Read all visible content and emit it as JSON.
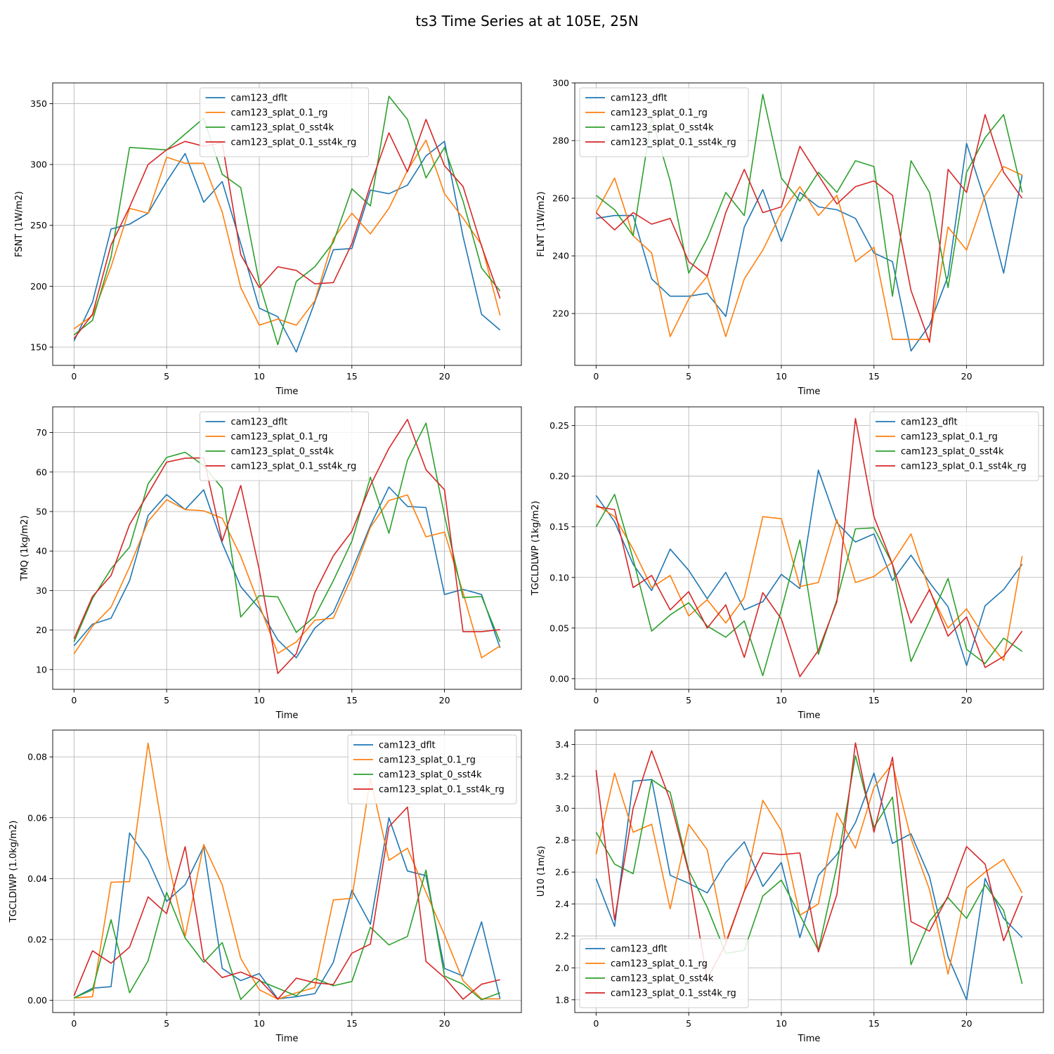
{
  "figure": {
    "title": "ts3 Time Series at at 105E, 25N"
  },
  "colors": {
    "cam123_dflt": "#1f77b4",
    "cam123_splat_0.1_rg": "#ff7f0e",
    "cam123_splat_0_sst4k": "#2ca02c",
    "cam123_splat_0.1_sst4k_rg": "#d62728"
  },
  "chart_data": [
    {
      "type": "line",
      "xlabel": "Time",
      "ylabel": "FSNT (1W/m2)",
      "xlim": [
        -1.15,
        24.15
      ],
      "ylim": [
        135,
        367
      ],
      "xticks": [
        0,
        5,
        10,
        15,
        20
      ],
      "yticks": [
        150,
        200,
        250,
        300,
        350
      ],
      "grid": true,
      "legend": "upper-center",
      "x": [
        0,
        1,
        2,
        3,
        4,
        5,
        6,
        7,
        8,
        9,
        10,
        11,
        12,
        13,
        14,
        15,
        16,
        17,
        18,
        19,
        20,
        21,
        22,
        23
      ],
      "series": [
        {
          "name": "cam123_dflt",
          "color": "#1f77b4",
          "values": [
            155,
            187,
            247,
            251,
            260,
            286,
            309,
            269,
            286,
            235,
            182,
            175,
            146,
            187,
            230,
            231,
            279,
            276,
            283,
            307,
            319,
            241,
            177,
            164
          ]
        },
        {
          "name": "cam123_splat_0.1_rg",
          "color": "#ff7f0e",
          "values": [
            165,
            176,
            216,
            264,
            260,
            306,
            301,
            301,
            261,
            199,
            168,
            173,
            168,
            188,
            239,
            260,
            243,
            264,
            295,
            320,
            276,
            256,
            234,
            176
          ]
        },
        {
          "name": "cam123_splat_0_sst4k",
          "color": "#2ca02c",
          "values": [
            160,
            172,
            224,
            314,
            313,
            312,
            325,
            338,
            292,
            281,
            203,
            152,
            204,
            216,
            236,
            280,
            266,
            356,
            337,
            289,
            314,
            270,
            215,
            196
          ]
        },
        {
          "name": "cam123_splat_0.1_sst4k_rg",
          "color": "#d62728",
          "values": [
            157,
            177,
            234,
            265,
            300,
            312,
            319,
            315,
            318,
            226,
            199,
            216,
            213,
            202,
            203,
            235,
            283,
            326,
            294,
            337,
            299,
            282,
            233,
            190
          ]
        }
      ]
    },
    {
      "type": "line",
      "xlabel": "Time",
      "ylabel": "FLNT (1W/m2)",
      "xlim": [
        -1.15,
        24.15
      ],
      "ylim": [
        202,
        300
      ],
      "xticks": [
        0,
        5,
        10,
        15,
        20
      ],
      "yticks": [
        220,
        240,
        260,
        280,
        300
      ],
      "grid": true,
      "legend": "upper-left",
      "x": [
        0,
        1,
        2,
        3,
        4,
        5,
        6,
        7,
        8,
        9,
        10,
        11,
        12,
        13,
        14,
        15,
        16,
        17,
        18,
        19,
        20,
        21,
        22,
        23
      ],
      "series": [
        {
          "name": "cam123_dflt",
          "color": "#1f77b4",
          "values": [
            253,
            254,
            254,
            232,
            226,
            226,
            227,
            219,
            250,
            263,
            245,
            262,
            257,
            256,
            253,
            241,
            238,
            207,
            216,
            233,
            279,
            259,
            234,
            268
          ]
        },
        {
          "name": "cam123_splat_0.1_rg",
          "color": "#ff7f0e",
          "values": [
            255,
            267,
            247,
            241,
            212,
            225,
            233,
            212,
            232,
            242,
            255,
            264,
            254,
            261,
            238,
            243,
            211,
            211,
            211,
            250,
            242,
            261,
            271,
            268
          ]
        },
        {
          "name": "cam123_splat_0_sst4k",
          "color": "#2ca02c",
          "values": [
            261,
            256,
            247,
            288,
            266,
            234,
            246,
            262,
            254,
            296,
            267,
            259,
            269,
            262,
            273,
            271,
            226,
            273,
            262,
            229,
            269,
            281,
            289,
            262
          ]
        },
        {
          "name": "cam123_splat_0.1_sst4k_rg",
          "color": "#d62728",
          "values": [
            255,
            249,
            255,
            251,
            253,
            238,
            233,
            255,
            270,
            255,
            257,
            278,
            268,
            258,
            264,
            266,
            261,
            228,
            210,
            270,
            262,
            289,
            269,
            260
          ]
        }
      ]
    },
    {
      "type": "line",
      "xlabel": "Time",
      "ylabel": "TMQ (1kg/m2)",
      "xlim": [
        -1.15,
        24.15
      ],
      "ylim": [
        5,
        76.5
      ],
      "xticks": [
        0,
        5,
        10,
        15,
        20
      ],
      "yticks": [
        10,
        20,
        30,
        40,
        50,
        60,
        70
      ],
      "grid": true,
      "legend": "upper-center",
      "x": [
        0,
        1,
        2,
        3,
        4,
        5,
        6,
        7,
        8,
        9,
        10,
        11,
        12,
        13,
        14,
        15,
        16,
        17,
        18,
        19,
        20,
        21,
        22,
        23
      ],
      "series": [
        {
          "name": "cam123_dflt",
          "color": "#1f77b4",
          "values": [
            16,
            21.5,
            23,
            32.5,
            49,
            54.3,
            50.5,
            55.5,
            42,
            31,
            25.5,
            17.5,
            13,
            20.5,
            24.5,
            35,
            46.5,
            56.2,
            51.3,
            51,
            29,
            30.3,
            29,
            15.5
          ]
        },
        {
          "name": "cam123_splat_0.1_rg",
          "color": "#ff7f0e",
          "values": [
            14,
            21,
            25.8,
            36,
            47.5,
            53,
            50.5,
            50.2,
            48.3,
            38.7,
            26.4,
            14.1,
            17,
            22.5,
            23,
            33.5,
            46,
            52.8,
            54.2,
            43.6,
            44.8,
            29.5,
            13,
            16
          ]
        },
        {
          "name": "cam123_splat_0_sst4k",
          "color": "#2ca02c",
          "values": [
            17,
            28,
            35.5,
            41,
            57,
            63.7,
            65,
            61.6,
            55.9,
            23.3,
            28.7,
            28.4,
            19.4,
            23.5,
            32.5,
            42.5,
            58.7,
            44.5,
            63,
            72.4,
            49,
            28.2,
            28.5,
            17
          ]
        },
        {
          "name": "cam123_splat_0.1_sst4k_rg",
          "color": "#d62728",
          "values": [
            17.8,
            28.5,
            33.8,
            46.7,
            54.5,
            62.5,
            63.5,
            63.6,
            42.5,
            56.6,
            35.3,
            9,
            14,
            29.5,
            38.8,
            45,
            56.6,
            66,
            73.3,
            60.6,
            55.5,
            19.6,
            19.6,
            20.1
          ]
        }
      ]
    },
    {
      "type": "line",
      "xlabel": "Time",
      "ylabel": "TGCLDLWP (1kg/m2)",
      "xlim": [
        -1.15,
        24.15
      ],
      "ylim": [
        -0.0105,
        0.2685
      ],
      "xticks": [
        0,
        5,
        10,
        15,
        20
      ],
      "yticks": [
        0.0,
        0.05,
        0.1,
        0.15,
        0.2,
        0.25
      ],
      "ytick_labels": [
        "0.00",
        "0.05",
        "0.10",
        "0.15",
        "0.20",
        "0.25"
      ],
      "grid": true,
      "legend": "upper-right",
      "x": [
        0,
        1,
        2,
        3,
        4,
        5,
        6,
        7,
        8,
        9,
        10,
        11,
        12,
        13,
        14,
        15,
        16,
        17,
        18,
        19,
        20,
        21,
        22,
        23
      ],
      "series": [
        {
          "name": "cam123_dflt",
          "color": "#1f77b4",
          "values": [
            0.181,
            0.155,
            0.113,
            0.087,
            0.128,
            0.107,
            0.079,
            0.105,
            0.068,
            0.076,
            0.103,
            0.089,
            0.206,
            0.154,
            0.135,
            0.143,
            0.097,
            0.122,
            0.095,
            0.071,
            0.013,
            0.072,
            0.088,
            0.113
          ]
        },
        {
          "name": "cam123_splat_0.1_rg",
          "color": "#ff7f0e",
          "values": [
            0.172,
            0.16,
            0.128,
            0.09,
            0.102,
            0.062,
            0.078,
            0.055,
            0.08,
            0.16,
            0.158,
            0.091,
            0.095,
            0.157,
            0.095,
            0.101,
            0.115,
            0.143,
            0.087,
            0.05,
            0.069,
            0.04,
            0.018,
            0.121
          ]
        },
        {
          "name": "cam123_splat_0_sst4k",
          "color": "#2ca02c",
          "values": [
            0.15,
            0.182,
            0.118,
            0.047,
            0.063,
            0.075,
            0.052,
            0.041,
            0.057,
            0.003,
            0.068,
            0.137,
            0.024,
            0.078,
            0.148,
            0.149,
            0.113,
            0.017,
            0.057,
            0.099,
            0.029,
            0.015,
            0.04,
            0.027
          ]
        },
        {
          "name": "cam123_splat_0.1_sst4k_rg",
          "color": "#d62728",
          "values": [
            0.17,
            0.167,
            0.09,
            0.102,
            0.068,
            0.086,
            0.05,
            0.073,
            0.021,
            0.085,
            0.059,
            0.002,
            0.028,
            0.076,
            0.257,
            0.16,
            0.113,
            0.055,
            0.088,
            0.042,
            0.061,
            0.011,
            0.022,
            0.047
          ]
        }
      ]
    },
    {
      "type": "line",
      "xlabel": "Time",
      "ylabel": "TGCLDIWP (1.0kg/m2)",
      "xlim": [
        -1.15,
        24.15
      ],
      "ylim": [
        -0.004,
        0.0888
      ],
      "xticks": [
        0,
        5,
        10,
        15,
        20
      ],
      "yticks": [
        0.0,
        0.02,
        0.04,
        0.06,
        0.08
      ],
      "ytick_labels": [
        "0.00",
        "0.02",
        "0.04",
        "0.06",
        "0.08"
      ],
      "grid": true,
      "legend": "upper-right",
      "x": [
        0,
        1,
        2,
        3,
        4,
        5,
        6,
        7,
        8,
        9,
        10,
        11,
        12,
        13,
        14,
        15,
        16,
        17,
        18,
        19,
        20,
        21,
        22,
        23
      ],
      "series": [
        {
          "name": "cam123_dflt",
          "color": "#1f77b4",
          "values": [
            0.0008,
            0.004,
            0.0045,
            0.055,
            0.0462,
            0.0325,
            0.038,
            0.0505,
            0.0105,
            0.0065,
            0.0088,
            0.0005,
            0.0012,
            0.0022,
            0.0125,
            0.0362,
            0.025,
            0.06,
            0.0425,
            0.041,
            0.0105,
            0.008,
            0.0258,
            0.0005
          ]
        },
        {
          "name": "cam123_splat_0.1_rg",
          "color": "#ff7f0e",
          "values": [
            0.0008,
            0.0012,
            0.0388,
            0.039,
            0.0845,
            0.0478,
            0.021,
            0.0512,
            0.038,
            0.0138,
            0.0035,
            0.0004,
            0.0025,
            0.0042,
            0.033,
            0.0335,
            0.073,
            0.046,
            0.05,
            0.0355,
            0.0215,
            0.0065,
            0.0005,
            0.0005
          ]
        },
        {
          "name": "cam123_splat_0_sst4k",
          "color": "#2ca02c",
          "values": [
            0.0008,
            0.0035,
            0.0265,
            0.0025,
            0.013,
            0.0355,
            0.0205,
            0.0125,
            0.019,
            0.0003,
            0.0065,
            0.004,
            0.0015,
            0.0072,
            0.0048,
            0.0062,
            0.024,
            0.0182,
            0.021,
            0.0428,
            0.008,
            0.0053,
            0.0002,
            0.0025
          ]
        },
        {
          "name": "cam123_splat_0.1_sst4k_rg",
          "color": "#d62728",
          "values": [
            0.0015,
            0.0163,
            0.0122,
            0.0175,
            0.034,
            0.0285,
            0.0505,
            0.0135,
            0.0075,
            0.0093,
            0.0068,
            0.0004,
            0.0073,
            0.0058,
            0.0052,
            0.0155,
            0.0185,
            0.057,
            0.0635,
            0.0128,
            0.0075,
            0.0004,
            0.0053,
            0.0068
          ]
        }
      ]
    },
    {
      "type": "line",
      "xlabel": "Time",
      "ylabel": "U10 (1m/s)",
      "xlim": [
        -1.15,
        24.15
      ],
      "ylim": [
        1.72,
        3.49
      ],
      "xticks": [
        0,
        5,
        10,
        15,
        20
      ],
      "yticks": [
        1.8,
        2.0,
        2.2,
        2.4,
        2.6,
        2.8,
        3.0,
        3.2,
        3.4
      ],
      "ytick_labels": [
        "1.8",
        "2.0",
        "2.2",
        "2.4",
        "2.6",
        "2.8",
        "3.0",
        "3.2",
        "3.4"
      ],
      "grid": true,
      "legend": "lower-left",
      "x": [
        0,
        1,
        2,
        3,
        4,
        5,
        6,
        7,
        8,
        9,
        10,
        11,
        12,
        13,
        14,
        15,
        16,
        17,
        18,
        19,
        20,
        21,
        22,
        23
      ],
      "series": [
        {
          "name": "cam123_dflt",
          "color": "#1f77b4",
          "values": [
            2.56,
            2.26,
            3.17,
            3.18,
            2.58,
            2.53,
            2.47,
            2.66,
            2.79,
            2.51,
            2.66,
            2.19,
            2.58,
            2.71,
            2.91,
            3.22,
            2.78,
            2.84,
            2.57,
            2.07,
            1.8,
            2.56,
            2.31,
            2.19
          ]
        },
        {
          "name": "cam123_splat_0.1_rg",
          "color": "#ff7f0e",
          "values": [
            2.71,
            3.22,
            2.85,
            2.9,
            2.37,
            2.9,
            2.74,
            2.16,
            2.48,
            3.05,
            2.86,
            2.33,
            2.4,
            2.97,
            2.75,
            3.13,
            3.28,
            2.81,
            2.49,
            1.96,
            2.5,
            2.6,
            2.68,
            2.47
          ]
        },
        {
          "name": "cam123_splat_0_sst4k",
          "color": "#2ca02c",
          "values": [
            2.85,
            2.65,
            2.59,
            3.18,
            3.1,
            2.61,
            2.38,
            2.09,
            2.11,
            2.45,
            2.55,
            2.33,
            2.11,
            2.64,
            3.33,
            2.88,
            3.07,
            2.02,
            2.29,
            2.44,
            2.31,
            2.52,
            2.36,
            1.9
          ]
        },
        {
          "name": "cam123_splat_0.1_sst4k_rg",
          "color": "#d62728",
          "values": [
            3.24,
            2.3,
            3.0,
            3.36,
            3.05,
            2.6,
            1.93,
            2.15,
            2.48,
            2.72,
            2.71,
            2.72,
            2.1,
            2.46,
            3.41,
            2.85,
            3.32,
            2.29,
            2.23,
            2.45,
            2.76,
            2.65,
            2.17,
            2.45
          ]
        }
      ]
    }
  ]
}
